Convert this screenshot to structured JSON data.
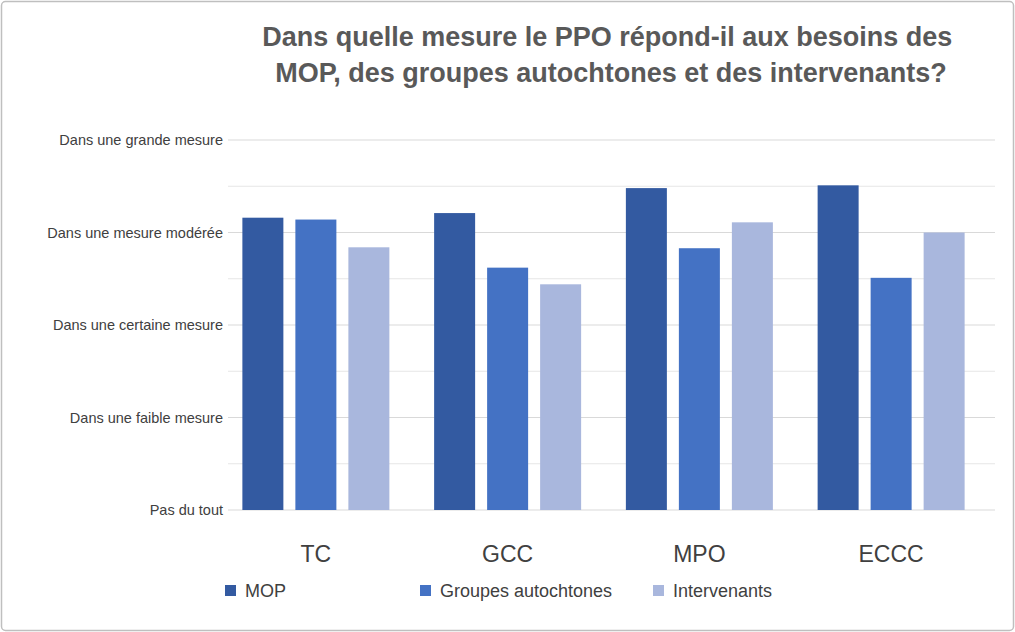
{
  "chart_data": {
    "type": "bar",
    "title": "Dans quelle mesure le PPO répond-il aux besoins des MOP, des groupes autochtones et des intervenants?",
    "categories": [
      "TC",
      "GCC",
      "MPO",
      "ECCC"
    ],
    "series": [
      {
        "name": "MOP",
        "color": "#335aa1",
        "values": [
          3.16,
          3.21,
          3.48,
          3.51
        ]
      },
      {
        "name": "Groupes autochtones",
        "color": "#4472c4",
        "values": [
          3.14,
          2.62,
          2.83,
          2.51
        ]
      },
      {
        "name": "Intervenants",
        "color": "#a9b7dd",
        "values": [
          2.84,
          2.44,
          3.11,
          3.0
        ]
      }
    ],
    "ylim": [
      0,
      4
    ],
    "yticks": [
      {
        "value": 0,
        "label": "Pas du tout"
      },
      {
        "value": 1,
        "label": "Dans une faible mesure"
      },
      {
        "value": 2,
        "label": "Dans une certaine mesure"
      },
      {
        "value": 3,
        "label": "Dans une mesure modérée"
      },
      {
        "value": 4,
        "label": "Dans une grande mesure"
      }
    ],
    "grid": true,
    "legend": "bottom"
  }
}
